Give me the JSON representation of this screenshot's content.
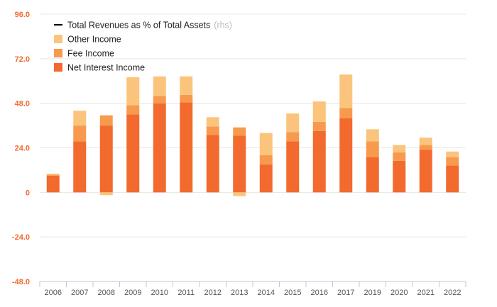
{
  "chart_data": {
    "type": "bar",
    "stacked": true,
    "categories": [
      "2006",
      "2007",
      "2008",
      "2009",
      "2010",
      "2011",
      "2012",
      "2013",
      "2014",
      "2015",
      "2016",
      "2017",
      "2019",
      "2020",
      "2021",
      "2022"
    ],
    "series": [
      {
        "name": "Net Interest Income",
        "color": "#f26a2e",
        "values": [
          9,
          27.5,
          36,
          42,
          48,
          48.5,
          31,
          30.5,
          15,
          27.5,
          33,
          40,
          19,
          17,
          23,
          14.5
        ]
      },
      {
        "name": "Fee Income",
        "color": "#f79a4e",
        "values": [
          0.5,
          8.5,
          5.5,
          5,
          4,
          4,
          4.5,
          4.5,
          5,
          5,
          5,
          5.5,
          8.5,
          4.5,
          2.5,
          4.5
        ]
      },
      {
        "name": "Other Income",
        "color": "#fbc47c",
        "values": [
          0.5,
          8,
          0,
          15,
          10.5,
          10,
          5,
          0,
          12,
          10,
          11,
          18,
          6.5,
          4,
          4,
          3
        ]
      }
    ],
    "negative_series": {
      "name": "Fee Income",
      "color": "#fbc47c",
      "values": [
        0,
        0,
        -1.5,
        0,
        0,
        0,
        0,
        -2,
        0,
        0,
        0,
        0,
        0,
        0,
        0,
        0
      ]
    },
    "line_series": {
      "name": "Total Revenues as % of Total Assets",
      "axis": "rhs",
      "color": "#000000"
    },
    "legend": [
      {
        "label": "Total Revenues as % of Total Assets",
        "note": "(rhs)",
        "swatch": "line",
        "color": "#000000"
      },
      {
        "label": "Other Income",
        "swatch": "box",
        "color": "#fbc47c"
      },
      {
        "label": "Fee Income",
        "swatch": "box",
        "color": "#f79a4e"
      },
      {
        "label": "Net Interest Income",
        "swatch": "box",
        "color": "#f26a2e"
      }
    ],
    "legend_position": "top-left",
    "yticks": [
      96.0,
      72.0,
      48.0,
      24.0,
      0,
      -24.0,
      -48.0
    ],
    "ytick_labels": [
      "96.0",
      "72.0",
      "48.0",
      "24.0",
      "0",
      "-24.0",
      "-48.0"
    ],
    "ylim": [
      -48,
      96
    ],
    "ytick_color": "#f26a2e",
    "grid": true,
    "title": "",
    "xlabel": "",
    "ylabel": ""
  }
}
